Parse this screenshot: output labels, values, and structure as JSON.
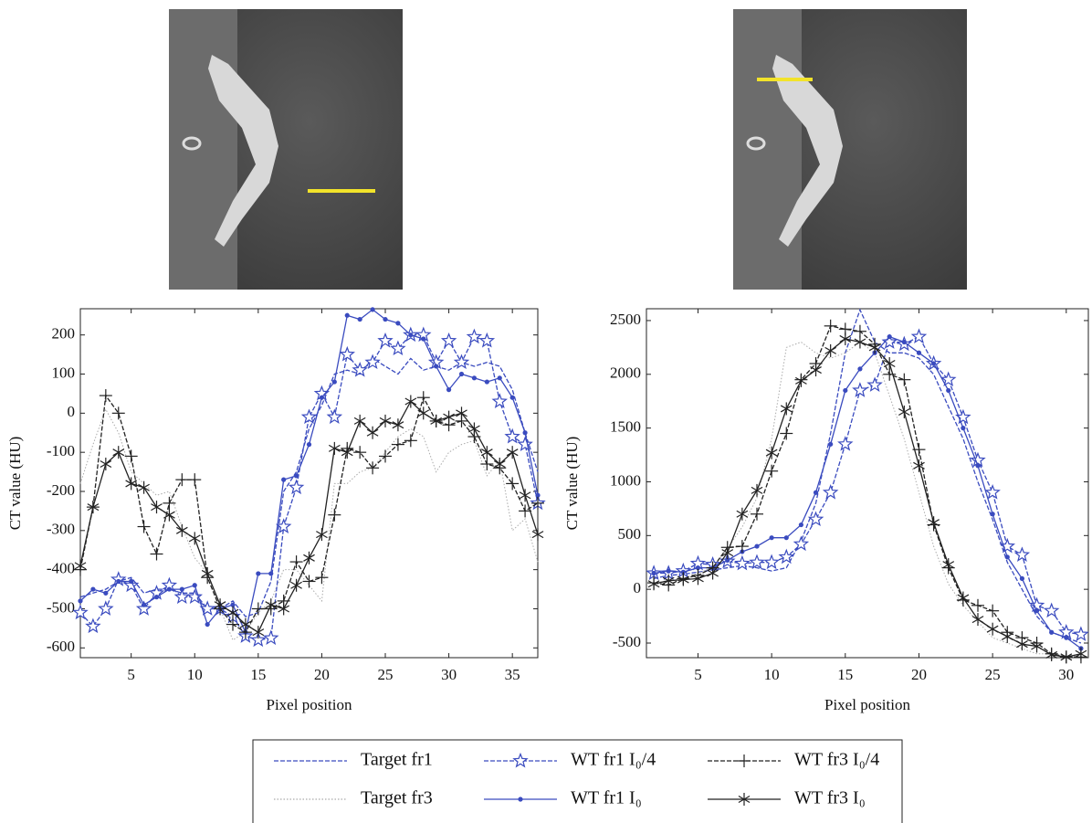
{
  "chart_data": [
    {
      "type": "line",
      "xlabel": "Pixel position",
      "ylabel": "CT value (HU)",
      "x": [
        1,
        2,
        3,
        4,
        5,
        6,
        7,
        8,
        9,
        10,
        11,
        12,
        13,
        14,
        15,
        16,
        17,
        18,
        19,
        20,
        21,
        22,
        23,
        24,
        25,
        26,
        27,
        28,
        29,
        30,
        31,
        32,
        33,
        34,
        35,
        36,
        37
      ],
      "xlim": [
        1,
        37
      ],
      "ylim": [
        -625,
        267
      ],
      "xticks": [
        5,
        10,
        15,
        20,
        25,
        30,
        35
      ],
      "yticks": [
        -600,
        -500,
        -400,
        -300,
        -200,
        -100,
        0,
        100,
        200
      ],
      "legend": true,
      "series": [
        {
          "name": "Target fr1",
          "color": "#3a4bbf",
          "dash": "dashed",
          "marker": "none",
          "values": [
            -470,
            -460,
            -450,
            -430,
            -420,
            -460,
            -450,
            -450,
            -460,
            -460,
            -500,
            -500,
            -480,
            -520,
            -510,
            -430,
            -200,
            -150,
            -40,
            20,
            100,
            110,
            100,
            140,
            120,
            100,
            140,
            110,
            120,
            110,
            130,
            120,
            130,
            120,
            60,
            -50,
            -150
          ]
        },
        {
          "name": "Target fr3",
          "color": "#aaaaaa",
          "dash": "dotted",
          "marker": "none",
          "values": [
            -180,
            -80,
            10,
            -50,
            -150,
            -180,
            -210,
            -200,
            -290,
            -370,
            -410,
            -500,
            -580,
            -560,
            -510,
            -480,
            -400,
            -400,
            -440,
            -480,
            -180,
            -180,
            -150,
            -140,
            -100,
            -60,
            -40,
            -60,
            -150,
            -100,
            -80,
            -70,
            -160,
            -120,
            -300,
            -270,
            -380
          ]
        },
        {
          "name": "WT fr1 I₀/4",
          "color": "#3a4bbf",
          "dash": "dashed",
          "marker": "star",
          "values": [
            -510,
            -545,
            -500,
            -425,
            -440,
            -500,
            -460,
            -440,
            -470,
            -470,
            -500,
            -500,
            -520,
            -570,
            -580,
            -575,
            -290,
            -190,
            -10,
            50,
            -10,
            150,
            110,
            130,
            185,
            165,
            200,
            200,
            130,
            185,
            130,
            195,
            185,
            30,
            -60,
            -80,
            -230
          ]
        },
        {
          "name": "WT fr1 I₀",
          "color": "#3a4bbf",
          "dash": "solid",
          "marker": "dot",
          "values": [
            -480,
            -450,
            -460,
            -430,
            -430,
            -490,
            -470,
            -450,
            -450,
            -440,
            -540,
            -500,
            -490,
            -560,
            -410,
            -410,
            -170,
            -160,
            -80,
            40,
            80,
            250,
            240,
            265,
            240,
            230,
            200,
            190,
            120,
            60,
            100,
            90,
            80,
            90,
            40,
            -50,
            -210
          ]
        },
        {
          "name": "WT fr3 I₀/4",
          "color": "#222222",
          "dash": "dashed",
          "marker": "plus",
          "values": [
            -400,
            -240,
            45,
            0,
            -110,
            -290,
            -360,
            -230,
            -170,
            -170,
            -420,
            -500,
            -540,
            -560,
            -500,
            -500,
            -480,
            -380,
            -430,
            -420,
            -260,
            -90,
            -100,
            -140,
            -110,
            -80,
            -70,
            40,
            -20,
            -30,
            -20,
            -60,
            -130,
            -140,
            -180,
            -250,
            -230
          ]
        },
        {
          "name": "WT fr3 I₀",
          "color": "#222222",
          "dash": "solid",
          "marker": "asterisk",
          "values": [
            -390,
            -240,
            -130,
            -100,
            -180,
            -190,
            -240,
            -260,
            -300,
            -320,
            -410,
            -490,
            -510,
            -540,
            -560,
            -490,
            -500,
            -440,
            -370,
            -310,
            -90,
            -100,
            -20,
            -50,
            -20,
            -30,
            30,
            0,
            -20,
            -10,
            0,
            -40,
            -100,
            -130,
            -100,
            -210,
            -310
          ]
        }
      ]
    },
    {
      "type": "line",
      "xlabel": "Pixel position",
      "ylabel": "CT value (HU)",
      "x": [
        2,
        3,
        4,
        5,
        6,
        7,
        8,
        9,
        10,
        11,
        12,
        13,
        14,
        15,
        16,
        17,
        18,
        19,
        20,
        21,
        22,
        23,
        24,
        25,
        26,
        27,
        28,
        29,
        30,
        31
      ],
      "xlim": [
        1.5,
        31.5
      ],
      "ylim": [
        -636,
        2610
      ],
      "xticks": [
        5,
        10,
        15,
        20,
        25,
        30
      ],
      "yticks": [
        -500,
        0,
        500,
        1000,
        1500,
        2000,
        2500
      ],
      "series": [
        {
          "color": "#3a4bbf",
          "dash": "dashed",
          "marker": "none",
          "values": [
            100,
            130,
            140,
            160,
            180,
            200,
            220,
            200,
            170,
            200,
            450,
            800,
            1450,
            2200,
            2600,
            2300,
            2200,
            2200,
            2150,
            2000,
            1700,
            1400,
            1000,
            650,
            250,
            0,
            -250,
            -400,
            -450,
            -500
          ]
        },
        {
          "color": "#aaaaaa",
          "dash": "dotted",
          "marker": "none",
          "values": [
            60,
            80,
            100,
            150,
            200,
            380,
            580,
            850,
            1400,
            2250,
            2300,
            2200,
            2150,
            2200,
            2300,
            2200,
            1800,
            1400,
            900,
            400,
            50,
            -150,
            -300,
            -450,
            -500,
            -550,
            -600,
            -600,
            -620,
            -630
          ]
        },
        {
          "color": "#3a4bbf",
          "dash": "dashed",
          "marker": "star",
          "values": [
            150,
            150,
            170,
            240,
            230,
            260,
            240,
            250,
            250,
            300,
            420,
            650,
            900,
            1350,
            1850,
            1900,
            2300,
            2280,
            2350,
            2100,
            1950,
            1600,
            1200,
            900,
            400,
            320,
            -150,
            -200,
            -400,
            -420
          ]
        },
        {
          "color": "#3a4bbf",
          "dash": "solid",
          "marker": "dot",
          "values": [
            150,
            170,
            160,
            200,
            200,
            270,
            350,
            400,
            480,
            480,
            600,
            900,
            1350,
            1850,
            2050,
            2200,
            2350,
            2300,
            2200,
            2100,
            1850,
            1500,
            1150,
            700,
            300,
            100,
            -200,
            -400,
            -450,
            -550
          ]
        },
        {
          "color": "#222222",
          "dash": "dashed",
          "marker": "plus",
          "values": [
            60,
            40,
            100,
            130,
            200,
            390,
            400,
            700,
            1100,
            1450,
            1950,
            2100,
            2450,
            2420,
            2400,
            2280,
            2000,
            1950,
            1300,
            600,
            200,
            -100,
            -150,
            -200,
            -400,
            -450,
            -500,
            -600,
            -630,
            -630
          ]
        },
        {
          "color": "#222222",
          "dash": "solid",
          "marker": "asterisk",
          "values": [
            50,
            80,
            90,
            100,
            150,
            340,
            700,
            920,
            1270,
            1680,
            1940,
            2040,
            2220,
            2330,
            2300,
            2250,
            2100,
            1650,
            1150,
            620,
            230,
            -80,
            -280,
            -370,
            -440,
            -510,
            -530,
            -610,
            -630,
            -600
          ]
        }
      ]
    }
  ]
}
